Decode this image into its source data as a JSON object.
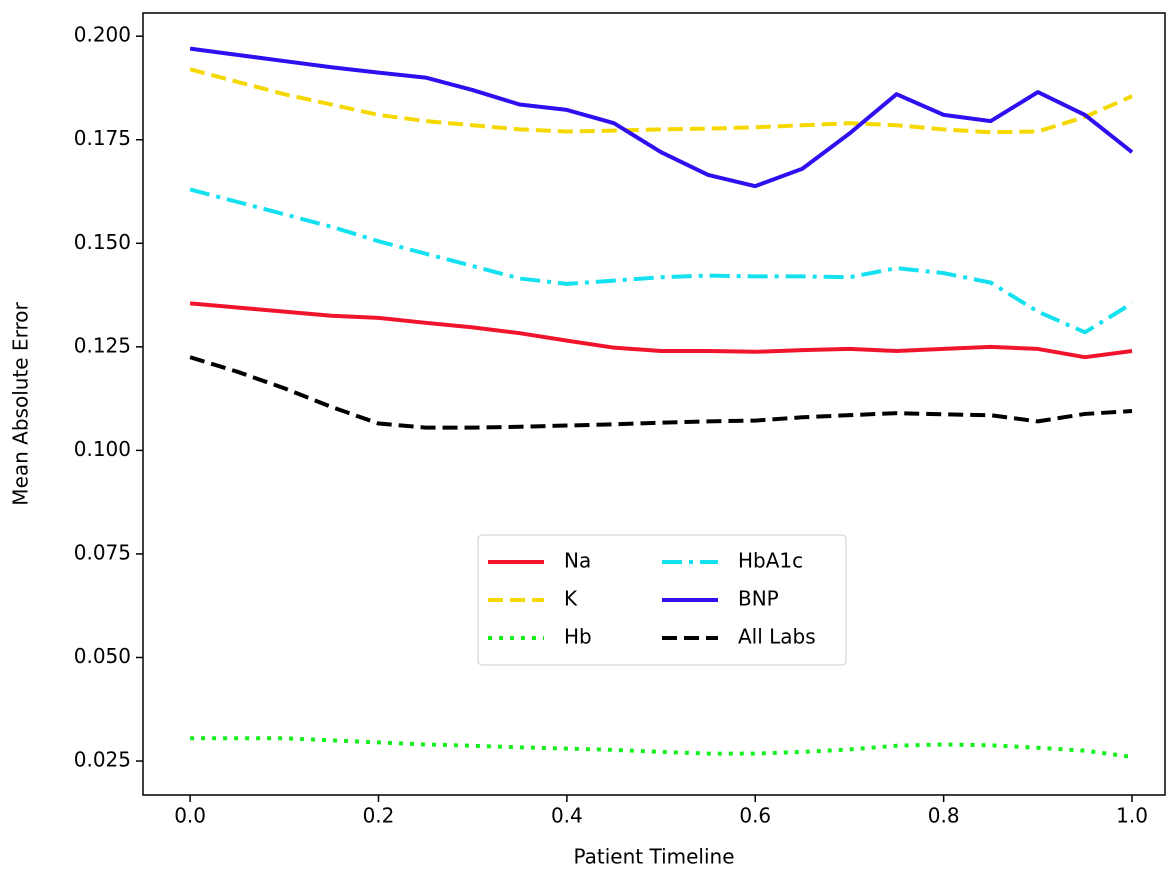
{
  "chart_data": {
    "type": "line",
    "x_label": "Patient Timeline",
    "y_label": "Mean Absolute Error",
    "x": [
      0,
      0.05,
      0.1,
      0.15,
      0.2,
      0.25,
      0.3,
      0.35,
      0.4,
      0.45,
      0.5,
      0.55,
      0.6,
      0.65,
      0.7,
      0.75,
      0.8,
      0.85,
      0.9,
      0.95,
      1.0
    ],
    "series": [
      {
        "name": "Na",
        "color": "#f0142d",
        "dash": "solid",
        "values": [
          0.1355,
          0.1345,
          0.1335,
          0.1325,
          0.132,
          0.1308,
          0.1297,
          0.1283,
          0.1265,
          0.1248,
          0.124,
          0.124,
          0.1238,
          0.1242,
          0.1245,
          0.124,
          0.1245,
          0.125,
          0.1245,
          0.1225,
          0.124
        ]
      },
      {
        "name": "K",
        "color": "#f5d800",
        "dash": "dashed",
        "values": [
          0.192,
          0.189,
          0.186,
          0.1835,
          0.181,
          0.1795,
          0.1785,
          0.1775,
          0.177,
          0.1772,
          0.1775,
          0.1777,
          0.178,
          0.1785,
          0.179,
          0.1785,
          0.1775,
          0.1768,
          0.177,
          0.1805,
          0.1855
        ]
      },
      {
        "name": "Hb",
        "color": "#14f01e",
        "dash": "dotted",
        "values": [
          0.0305,
          0.0305,
          0.0305,
          0.03,
          0.0295,
          0.029,
          0.0287,
          0.0283,
          0.028,
          0.0277,
          0.0272,
          0.0268,
          0.0268,
          0.0272,
          0.0278,
          0.0287,
          0.029,
          0.0288,
          0.0282,
          0.0275,
          0.026
        ]
      },
      {
        "name": "HbA1c",
        "color": "#14e1f0",
        "dash": "dashdot",
        "values": [
          0.163,
          0.16,
          0.157,
          0.154,
          0.1505,
          0.1475,
          0.1445,
          0.1415,
          0.1402,
          0.141,
          0.1418,
          0.1422,
          0.142,
          0.142,
          0.1418,
          0.144,
          0.1428,
          0.1405,
          0.1335,
          0.1285,
          0.1355
        ]
      },
      {
        "name": "BNP",
        "color": "#2d0ff0",
        "dash": "solid",
        "values": [
          0.197,
          0.1955,
          0.194,
          0.1925,
          0.1912,
          0.19,
          0.187,
          0.1835,
          0.1822,
          0.179,
          0.172,
          0.1665,
          0.1638,
          0.168,
          0.1765,
          0.186,
          0.181,
          0.1795,
          0.1865,
          0.181,
          0.172
        ]
      },
      {
        "name": "All Labs",
        "color": "#000000",
        "dash": "dashed",
        "values": [
          0.1225,
          0.119,
          0.115,
          0.1105,
          0.1065,
          0.1055,
          0.1055,
          0.1057,
          0.106,
          0.1063,
          0.1067,
          0.107,
          0.1072,
          0.108,
          0.1085,
          0.109,
          0.1087,
          0.1085,
          0.107,
          0.1088,
          0.1095
        ]
      }
    ],
    "xlim": [
      -0.05,
      1.035
    ],
    "ylim": [
      0.0168,
      0.2056
    ],
    "xticks": [
      {
        "value": 0,
        "label": "0.0"
      },
      {
        "value": 0.2,
        "label": "0.2"
      },
      {
        "value": 0.4,
        "label": "0.4"
      },
      {
        "value": 0.6,
        "label": "0.6"
      },
      {
        "value": 0.8,
        "label": "0.8"
      },
      {
        "value": 1.0,
        "label": "1.0"
      }
    ],
    "yticks": [
      0.025,
      {
        "value": 0.05,
        "label": "0.050"
      },
      0.075,
      {
        "value": 0.1,
        "label": "0.100"
      },
      0.125,
      {
        "value": 0.15,
        "label": "0.150"
      },
      0.175,
      {
        "value": 0.2,
        "label": "0.200"
      }
    ],
    "grid": false,
    "legend_loc": "lower center",
    "legend_columns": 2
  }
}
